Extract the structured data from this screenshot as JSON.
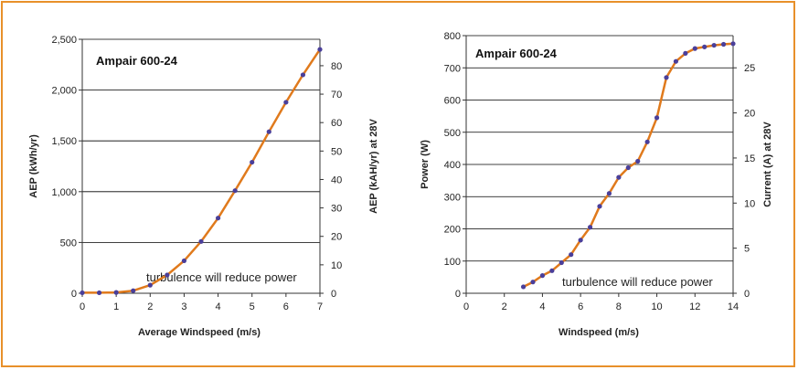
{
  "colors": {
    "frame": "#e8902a",
    "line": "#e07a1c",
    "marker": "#4a3f9a",
    "grid": "#000000"
  },
  "chart_data": [
    {
      "type": "line",
      "title": "Ampair 600-24",
      "annotation": "turbulence will reduce power",
      "xlabel": "Average Windspeed (m/s)",
      "ylabel": "AEP (kWh/yr)",
      "y2label": "AEP (kAH/yr) at 28V",
      "xlim": [
        0,
        7
      ],
      "ylim": [
        0,
        2500
      ],
      "y2lim": [
        0,
        89.29
      ],
      "grid": "horizontal",
      "xticks": [
        "0",
        "1",
        "2",
        "3",
        "4",
        "5",
        "6",
        "7"
      ],
      "yticks": [
        "0",
        "500",
        "1,000",
        "1,500",
        "2,000",
        "2,500"
      ],
      "y2ticks": [
        "0",
        "10",
        "20",
        "30",
        "40",
        "50",
        "60",
        "70",
        "80"
      ],
      "series": [
        {
          "x": [
            0,
            0.5,
            1,
            1.5,
            2,
            2.5,
            3,
            3.5,
            4,
            4.5,
            5,
            5.5,
            6,
            6.5,
            7
          ],
          "y": [
            5,
            5,
            8,
            25,
            80,
            180,
            320,
            510,
            740,
            1010,
            1290,
            1590,
            1880,
            2150,
            2400
          ]
        }
      ]
    },
    {
      "type": "line",
      "title": "Ampair 600-24",
      "annotation": "turbulence will reduce power",
      "xlabel": "Windspeed (m/s)",
      "ylabel": "Power (W)",
      "y2label": "Current (A) at 28V",
      "xlim": [
        0,
        14
      ],
      "ylim": [
        0,
        800
      ],
      "y2lim": [
        0,
        28.57
      ],
      "grid": "horizontal",
      "xticks": [
        "0",
        "2",
        "4",
        "6",
        "8",
        "10",
        "12",
        "14"
      ],
      "yticks": [
        "0",
        "100",
        "200",
        "300",
        "400",
        "500",
        "600",
        "700",
        "800"
      ],
      "y2ticks": [
        "0",
        "5",
        "10",
        "15",
        "20",
        "25"
      ],
      "series": [
        {
          "x": [
            3,
            3.5,
            4,
            4.5,
            5,
            5.5,
            6,
            6.5,
            7,
            7.5,
            8,
            8.5,
            9,
            9.5,
            10,
            10.5,
            11,
            11.5,
            12,
            12.5,
            13,
            13.5,
            14
          ],
          "y": [
            20,
            35,
            55,
            70,
            95,
            120,
            165,
            205,
            270,
            310,
            360,
            390,
            410,
            470,
            545,
            670,
            720,
            745,
            760,
            765,
            770,
            773,
            775
          ]
        }
      ]
    }
  ]
}
